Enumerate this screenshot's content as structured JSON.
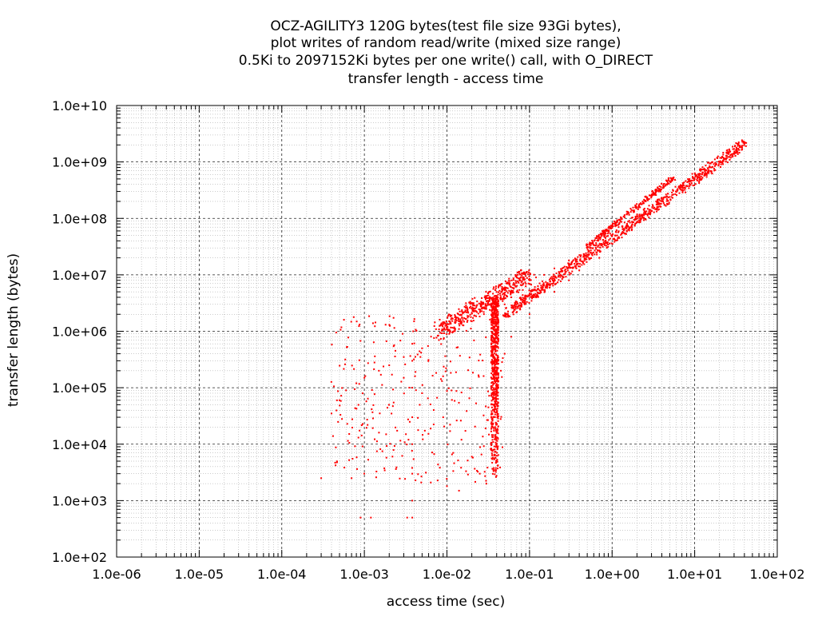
{
  "chart_data": {
    "type": "scatter",
    "title_lines": [
      "OCZ-AGILITY3 120G bytes(test file size 93Gi bytes),",
      "plot writes of random read/write (mixed size range)",
      "0.5Ki to 2097152Ki bytes per one write() call, with O_DIRECT",
      "transfer length - access time"
    ],
    "xlabel": "access time (sec)",
    "ylabel": "transfer length (bytes)",
    "xscale": "log",
    "yscale": "log",
    "xlim": [
      1e-06,
      100
    ],
    "ylim": [
      100,
      10000000000
    ],
    "xticks": [
      "1.0e-06",
      "1.0e-05",
      "1.0e-04",
      "1.0e-03",
      "1.0e-02",
      "1.0e-01",
      "1.0e+00",
      "1.0e+01",
      "1.0e+02"
    ],
    "yticks": [
      "1.0e+02",
      "1.0e+03",
      "1.0e+04",
      "1.0e+05",
      "1.0e+06",
      "1.0e+07",
      "1.0e+08",
      "1.0e+09",
      "1.0e+10"
    ],
    "grid": true,
    "marker_color": "#ff0000",
    "series": [
      {
        "marker": "dot",
        "points": [
          [
            0.0003,
            2500
          ],
          [
            0.0007,
            2500
          ],
          [
            0.0009,
            500
          ],
          [
            0.0012,
            500
          ],
          [
            0.0033,
            500
          ],
          [
            0.0004,
            35000
          ],
          [
            0.0005,
            60000
          ],
          [
            0.0006,
            90000
          ],
          [
            0.0008,
            120000
          ],
          [
            0.001,
            150000
          ],
          [
            0.0015,
            200000
          ],
          [
            0.002,
            250000
          ],
          [
            0.003,
            350000
          ],
          [
            0.005,
            500000
          ],
          [
            0.008,
            700000
          ],
          [
            0.012,
            1000000
          ],
          [
            0.02,
            1500000
          ],
          [
            0.03,
            2500000
          ],
          [
            0.045,
            4000000
          ],
          [
            0.065,
            7000000
          ],
          [
            0.09,
            9500000
          ],
          [
            0.015,
            12000
          ],
          [
            0.02,
            6000
          ],
          [
            0.025,
            3000
          ],
          [
            0.03,
            2000
          ],
          [
            0.014,
            1500
          ],
          [
            0.01,
            1800
          ],
          [
            0.009,
            30000
          ],
          [
            0.005,
            80000
          ],
          [
            0.003,
            150000
          ],
          [
            0.0038,
            500
          ],
          [
            0.0038,
            1000
          ],
          [
            0.0038,
            3000
          ],
          [
            0.0038,
            10000
          ],
          [
            0.0038,
            30000
          ],
          [
            0.0038,
            100000
          ],
          [
            0.0038,
            300000
          ],
          [
            0.0038,
            600000
          ],
          [
            0.0039,
            1000000
          ],
          [
            0.004,
            1500000
          ],
          [
            0.05,
            3000000
          ],
          [
            0.06,
            4000000
          ],
          [
            0.07,
            5000000
          ],
          [
            0.08,
            6500000
          ],
          [
            0.1,
            8000000
          ],
          [
            0.12,
            9000000
          ],
          [
            0.15,
            10000000
          ],
          [
            0.2,
            13000000
          ],
          [
            0.3,
            18000000
          ],
          [
            0.5,
            30000000
          ],
          [
            0.8,
            50000000
          ],
          [
            1.2,
            70000000
          ],
          [
            2.0,
            110000000
          ],
          [
            3.5,
            190000000
          ],
          [
            6.0,
            300000000
          ],
          [
            10.0,
            500000000
          ],
          [
            15.0,
            800000000
          ],
          [
            22.0,
            1200000000
          ],
          [
            30.0,
            1700000000
          ],
          [
            40.0,
            2100000000
          ],
          [
            2.5,
            120000000
          ],
          [
            4.0,
            200000000
          ],
          [
            5.0,
            450000000
          ],
          [
            5.5,
            500000000
          ],
          [
            1.5,
            60000000
          ],
          [
            0.7,
            20000000
          ],
          [
            0.4,
            12000000
          ],
          [
            0.3,
            8000000
          ],
          [
            0.2,
            5000000
          ],
          [
            0.1,
            2000000
          ],
          [
            0.06,
            800000
          ],
          [
            0.05,
            400000
          ],
          [
            0.045,
            200000
          ],
          [
            0.042,
            100000
          ],
          [
            0.04,
            50000
          ]
        ]
      }
    ]
  }
}
